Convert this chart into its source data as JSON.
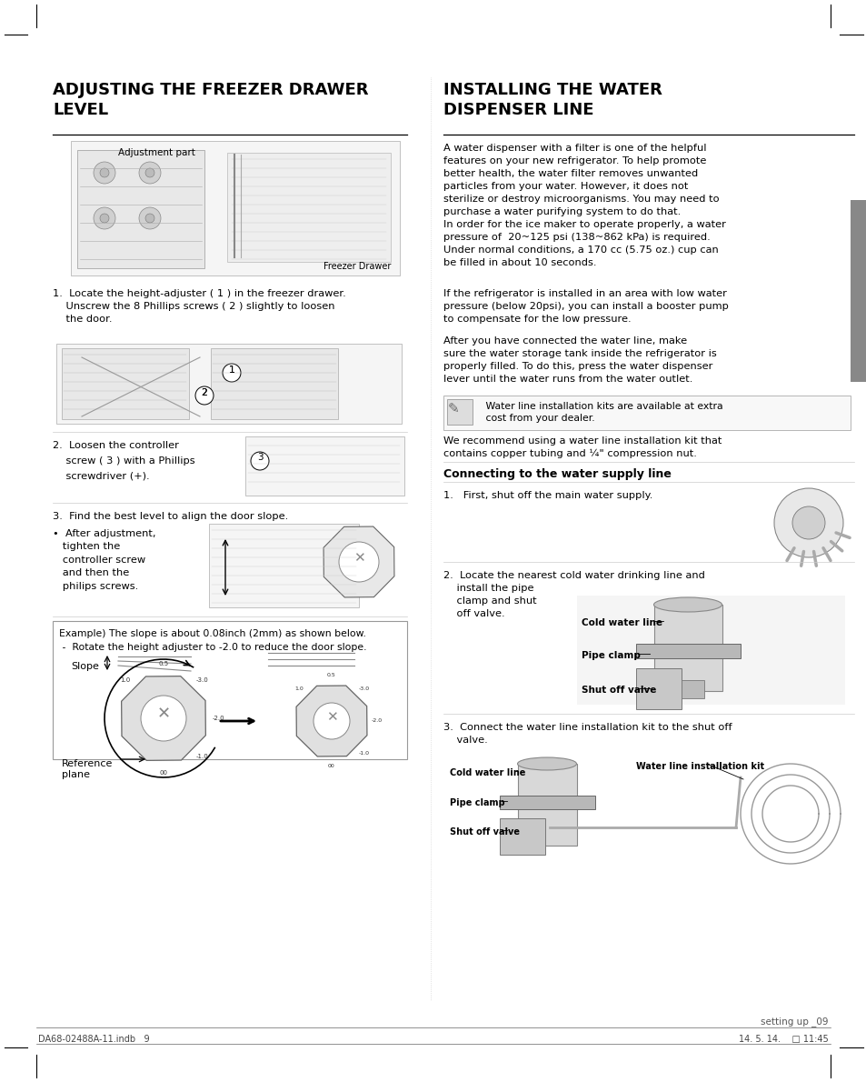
{
  "bg_color": "#ffffff",
  "page_width": 9.54,
  "page_height": 11.9,
  "left_title": "ADJUSTING THE FREEZER DRAWER\nLEVEL",
  "right_title": "INSTALLING THE WATER\nDISPENSER LINE",
  "footer_left": "DA68-02488A-11.indb   9",
  "footer_right": "14. 5. 14.    □ 11:45",
  "page_number": "setting up _09",
  "step1_text": "1.  Locate the height-adjuster ( 1 ) in the freezer drawer.\n    Unscrew the 8 Phillips screws ( 2 ) slightly to loosen\n    the door.",
  "step2_text_a": "2.  Loosen the controller",
  "step2_text_b": "    screw ( 3 ) with a Phillips",
  "step2_text_c": "    screwdriver (+).",
  "step3_text": "3.  Find the best level to align the door slope.",
  "step3_bullet": "•  After adjustment,\n   tighten the\n   controller screw\n   and then the\n   philips screws.",
  "example_text_1": "Example) The slope is about 0.08inch (2mm) as shown below.",
  "example_text_2": " -  Rotate the height adjuster to -2.0 to reduce the door slope.",
  "right_para1": "A water dispenser with a filter is one of the helpful\nfeatures on your new refrigerator. To help promote\nbetter health, the water filter removes unwanted\nparticles from your water. However, it does not\nsterilize or destroy microorganisms. You may need to\npurchase a water purifying system to do that.\nIn order for the ice maker to operate properly, a water\npressure of  20~125 psi (138~862 kPa) is required.\nUnder normal conditions, a 170 cc (5.75 oz.) cup can\nbe filled in about 10 seconds.",
  "right_para2": "If the refrigerator is installed in an area with low water\npressure (below 20psi), you can install a booster pump\nto compensate for the low pressure.",
  "right_para3": "After you have connected the water line, make\nsure the water storage tank inside the refrigerator is\nproperly filled. To do this, press the water dispenser\nlever until the water runs from the water outlet.",
  "note_text": "   Water line installation kits are available at extra\n   cost from your dealer.",
  "right_para4": "We recommend using a water line installation kit that\ncontains copper tubing and ¼\" compression nut.",
  "connect_title": "Connecting to the water supply line",
  "connect_step1": "1.   First, shut off the main water supply.",
  "connect_step2": "2.  Locate the nearest cold water drinking line and\n    install the pipe\n    clamp and shut\n    off valve.",
  "connect_step3": "3.  Connect the water line installation kit to the shut off\n    valve.",
  "label_cold_water": "Cold water line",
  "label_pipe_clamp": "Pipe clamp",
  "label_shut_off": "Shut off valve",
  "label_cold_water2": "Cold water line",
  "label_pipe_clamp2": "Pipe clamp",
  "label_shut_off2": "Shut off valve",
  "label_water_kit": "Water line installation kit",
  "label_slope": "Slope",
  "label_ref_plane": "Reference\nplane",
  "label_adj_part": "Adjustment part",
  "label_freezer_drawer": "Freezer Drawer"
}
